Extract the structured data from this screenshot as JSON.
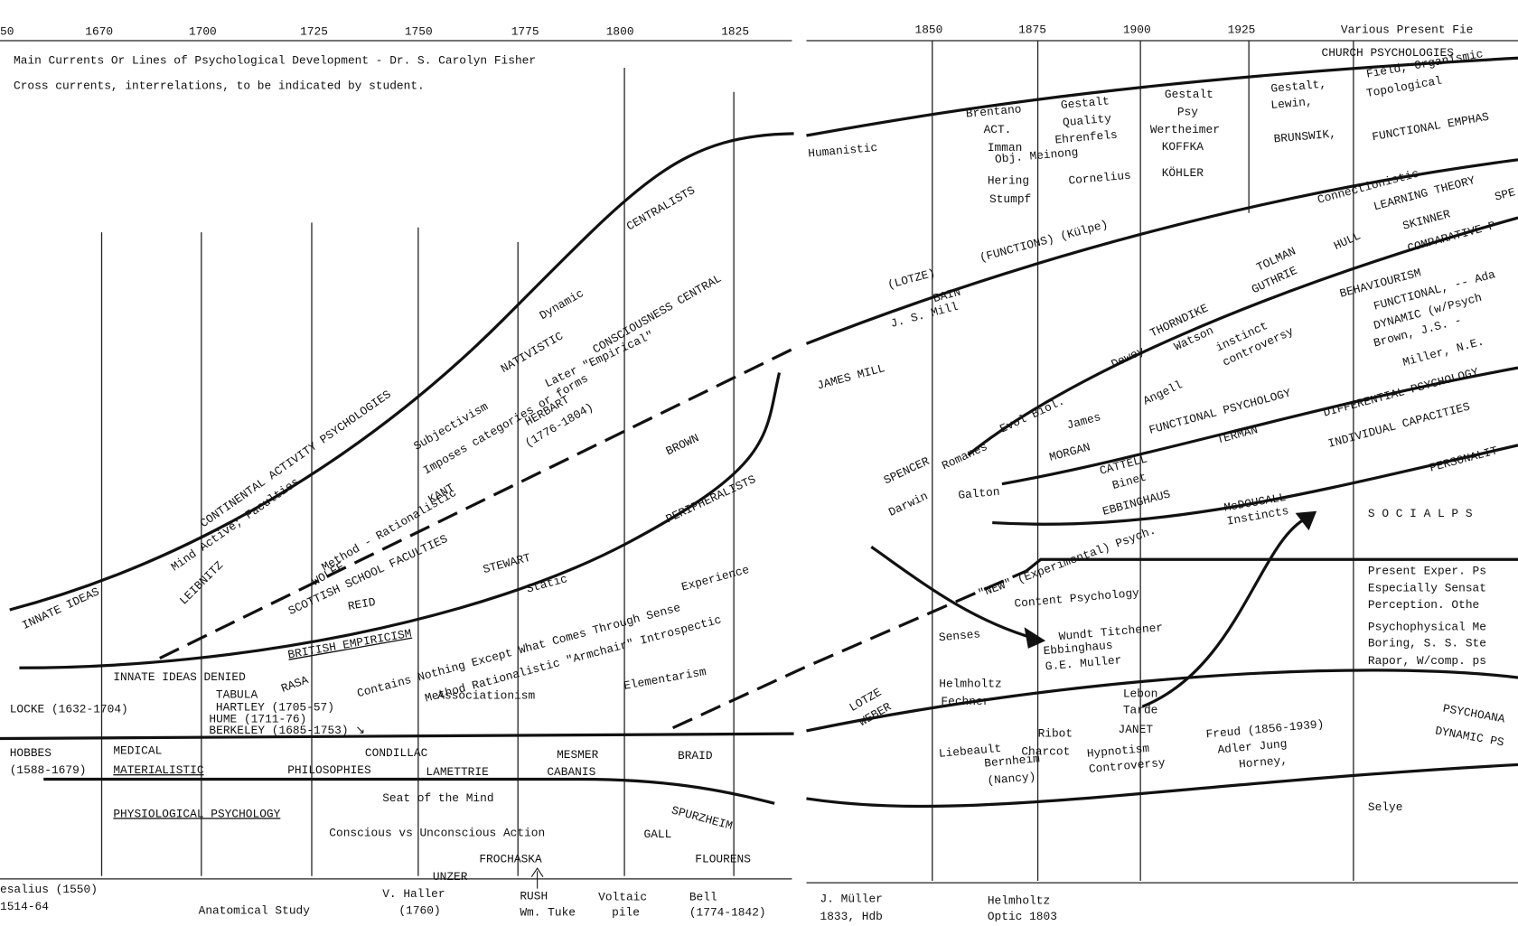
{
  "header": {
    "title": "Main Currents Or Lines of Psychological Development - Dr. S. Carolyn Fisher",
    "subtitle": "Cross currents, interrelations, to be indicated by student."
  },
  "years_left": [
    "50",
    "1670",
    "1700",
    "1725",
    "1750",
    "1775",
    "1800",
    "1825"
  ],
  "years_right": [
    "1850",
    "1875",
    "1900",
    "1925",
    "Various  Present Fie"
  ],
  "labels": [
    "INNATE IDEAS",
    "Mind Active; Faculties",
    "CONTINENTAL ACTIVITY PSYCHOLOGIES",
    "LEIBNITZ",
    "Method - Rationalistic",
    "WOLFF",
    "SCOTTISH SCHOOL FACULTIES",
    "Subjectivism",
    "Imposes categories or forms",
    "KANT",
    "Later \"Empirical\"",
    "HERBART",
    "(1776-1804)",
    "NATIVISTIC",
    "Dynamic",
    "CONSCIOUSNESS CENTRAL",
    "CENTRALISTS",
    "BROWN",
    "PERIPHERALISTS",
    "STEWART",
    "Static",
    "REID",
    "BRITISH EMPIRICISM",
    "Contains Nothing Except What Comes Through Sense",
    "Experience",
    "Method Rationalistic \"Armchair\" Introspectic",
    "Elementarism",
    "Associationism",
    "RASA",
    "INNATE IDEAS DENIED",
    "TABULA",
    "HARTLEY (1705-57)",
    "HUME (1711-76)",
    "BERKELEY (1685-1753) ↘",
    "LOCKE (1632-1704)",
    "HOBBES",
    "(1588-1679)",
    "MEDICAL",
    "MATERIALISTIC",
    "PHILOSOPHIES",
    "CONDILLAC",
    "LAMETTRIE",
    "MESMER",
    "CABANIS",
    "BRAID",
    "Seat of the Mind",
    "PHYSIOLOGICAL PSYCHOLOGY",
    "Conscious vs Unconscious Action",
    "GALL",
    "SPURZHEIM",
    "FROCHASKA",
    "FLOURENS",
    "UNZER",
    "esalius (1550)",
    "1514-64",
    "Anatomical Study",
    "V. Haller",
    "(1760)",
    "RUSH",
    "Wm. Tuke",
    "Voltaic",
    "pile",
    "Bell",
    "(1774-1842)",
    "CHURCH PSYCHOLOGIES",
    "Humanistic",
    "Brentano",
    "ACT.",
    "Imman",
    "Hering",
    "Stumpf",
    "Gestalt",
    "Quality",
    "Ehrenfels",
    "Obj. Meinong",
    "Cornelius",
    "Gestalt",
    "Psy",
    "Wertheimer",
    "KOFFKA",
    "KÖHLER",
    "Gestalt,",
    "Lewin,",
    "BRUNSWIK,",
    "Field, Organismic",
    "Topological",
    "FUNCTIONAL EMPHAS",
    "Connectionistic",
    "LEARNING THEORY",
    "SKINNER",
    "SPE",
    "(LOTZE)",
    "(FUNCTIONS) (Külpe)",
    "BAIN",
    "J. S. Mill",
    "TOLMAN",
    "GUTHRIE",
    "HULL",
    "COMPARATIVE P",
    "BEHAVIOURISM",
    "FUNCTIONAL, -- Ada",
    "DYNAMIC (w/Psych",
    "Brown, J.S. -",
    "Miller, N.E.",
    "JAMES MILL",
    "THORNDIKE",
    "Watson",
    "instinct",
    "controversy",
    "Dewey",
    "Angell",
    "Evol Biol.",
    "James",
    "FUNCTIONAL PSYCHOLOGY",
    "DIFFERENTIAL PSYCHOLOGY",
    "INDIVIDUAL CAPACITIES",
    "PERSONALIT",
    "SPENCER",
    "Romanes",
    "MORGAN",
    "TERMAN",
    "CATTELL",
    "Binet",
    "EBBINGHAUS",
    "Darwin",
    "Galton",
    "McDOUGALL",
    "Instincts",
    "S O C I A L   P S",
    "\"NEW\" (Experimental) Psych.",
    "Content Psychology",
    "Wundt Titchener",
    "Ebbinghaus",
    "G.E. Muller",
    "Senses",
    "Helmholtz",
    "Fechner",
    "LOTZE",
    "WEBER",
    "Present Exper. Ps",
    "Especially Sensat",
    "Perception.  Othe",
    "Psychophysical Me",
    "Boring, S. S. Ste",
    "Rapor, W/comp. ps",
    "Ribot",
    "Charcot",
    "Lebon",
    "Tarde",
    "JANET",
    "Liebeault",
    "Bernheim",
    "(Nancy)",
    "Hypnotism",
    "Controversy",
    "Freud (1856-1939)",
    "Adler Jung",
    "Horney,",
    "PSYCHOANA",
    "DYNAMIC PS",
    "Selye",
    "J. Müller",
    "1833, Hdb",
    "Helmholtz",
    "Optic 1803"
  ]
}
